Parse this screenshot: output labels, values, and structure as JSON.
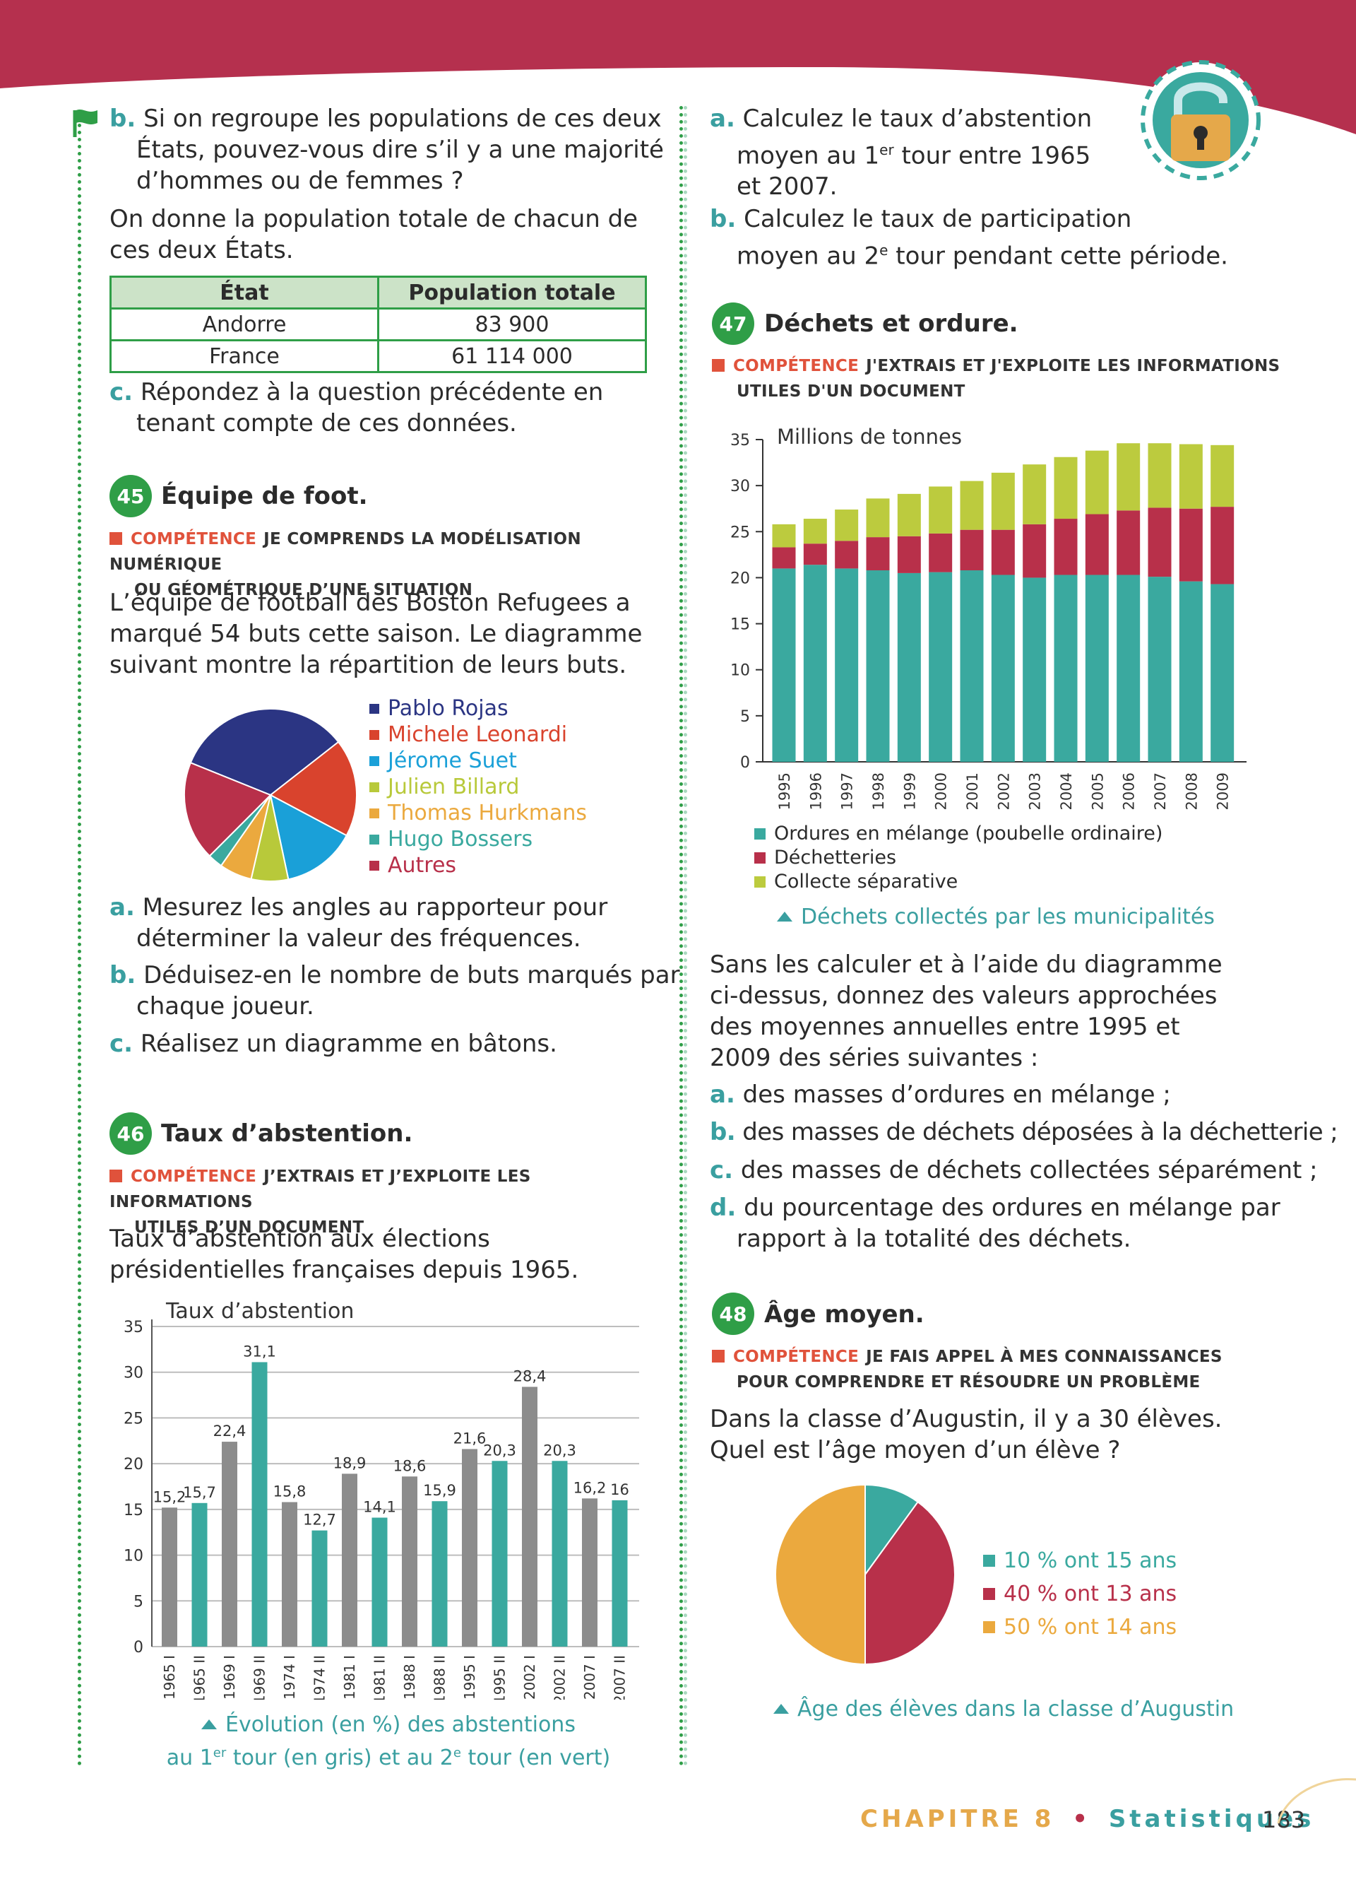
{
  "left": {
    "b_label": "b.",
    "b_text": "Si on regroupe les populations de ces deux États, pouvez-vous dire s’il y a une majorité d’hommes ou de femmes ?",
    "intro": "On donne la population totale de chacun de ces deux États.",
    "table": {
      "headers": [
        "État",
        "Population totale"
      ],
      "rows": [
        [
          "Andorre",
          "83 900"
        ],
        [
          "France",
          "61 114 000"
        ]
      ]
    },
    "c_label": "c.",
    "c_text": "Répondez à la question précédente en tenant compte de ces données."
  },
  "ex45": {
    "number": "45",
    "title": "Équipe de foot.",
    "comp_kw": "COMPÉTENCE",
    "comp_text_1": "JE COMPRENDS LA MODÉLISATION NUMÉRIQUE",
    "comp_text_2": "OU GÉOMÉTRIQUE D’UNE SITUATION",
    "text": "L’équipe de football des Boston Refugees a marqué 54 buts cette saison. Le diagramme suivant montre la répartition de leurs buts.",
    "a_label": "a.",
    "a_text": "Mesurez les angles au rapporteur pour déterminer la valeur des fréquences.",
    "b_label": "b.",
    "b_text": "Déduisez-en le nombre de buts marqués par chaque joueur.",
    "c_label": "c.",
    "c_text": "Réalisez un diagramme en bâtons."
  },
  "ex46": {
    "number": "46",
    "title": "Taux d’abstention.",
    "comp_kw": "COMPÉTENCE",
    "comp_text_1": "J’EXTRAIS ET J’EXPLOITE LES INFORMATIONS",
    "comp_text_2": "UTILES D’UN DOCUMENT",
    "text": "Taux d’abstention aux élections présidentielles françaises depuis 1965.",
    "caption_1": "Évolution (en %) des abstentions",
    "caption_2a": "au 1",
    "caption_2b": "er",
    "caption_2c": " tour (en gris) et au 2",
    "caption_2d": "e",
    "caption_2e": " tour (en vert)"
  },
  "right": {
    "a_label": "a.",
    "a_text_1": "Calculez le taux d’abstention",
    "a_text_2a": "moyen au 1",
    "a_text_2b": "er",
    "a_text_2c": " tour entre 1965",
    "a_text_3": "et 2007.",
    "b_label": "b.",
    "b_text_1": "Calculez le taux de participation",
    "b_text_2a": "moyen au 2",
    "b_text_2b": "e",
    "b_text_2c": " tour pendant cette période."
  },
  "ex47": {
    "number": "47",
    "title": "Déchets et ordure.",
    "comp_kw": "COMPÉTENCE",
    "comp_text_1": "J'EXTRAIS ET J'EXPLOITE LES INFORMATIONS",
    "comp_text_2": "UTILES D'UN DOCUMENT",
    "caption": "Déchets collectés par les municipalités",
    "text": "Sans les calculer et à l’aide du diagramme ci-dessus, donnez des valeurs approchées des moyennes annuelles entre 1995 et 2009 des séries suivantes :",
    "a_label": "a.",
    "a_text": "des masses d’ordures en mélange ;",
    "b_label": "b.",
    "b_text": "des masses de déchets déposées à la déchetterie ;",
    "c_label": "c.",
    "c_text": "des masses de déchets collectées séparément ;",
    "d_label": "d.",
    "d_text": "du pourcentage des ordures en mélange par rapport à la totalité des déchets."
  },
  "ex48": {
    "number": "48",
    "title": "Âge moyen.",
    "comp_kw": "COMPÉTENCE",
    "comp_text_1": "JE FAIS APPEL À MES CONNAISSANCES",
    "comp_text_2": "POUR COMPRENDRE ET RÉSOUDRE UN PROBLÈME",
    "text_1": "Dans la classe d’Augustin, il y a 30 élèves.",
    "text_2": "Quel est l’âge moyen d’un élève ?",
    "caption": "Âge des élèves dans la classe d’Augustin"
  },
  "footer": {
    "chapter": "CHAPITRE 8",
    "bullet": "•",
    "section": "Statistiques",
    "page": "183"
  },
  "colors": {
    "header_band": "#b5304e",
    "green_accent": "#2f9e47",
    "teal": "#3aa99f",
    "crimson": "#b8304a",
    "lime": "#bccb3e",
    "gray_bar": "#8c8c8c",
    "competence_red": "#e0523b",
    "footer_orange": "#e5a84a",
    "footer_teal": "#3a9fa0"
  },
  "icons": [
    "flag-icon",
    "padlock-icon",
    "triangle-caption-icon"
  ],
  "chart_data": [
    {
      "id": "pie_foot",
      "type": "pie",
      "labels": [
        "Pablo Rojas",
        "Michele Leonardi",
        "Jérome Suet",
        "Julien Billard",
        "Thomas Hurkmans",
        "Hugo Bossers",
        "Autres"
      ],
      "values": [
        120,
        66,
        50,
        25,
        22,
        10,
        67
      ],
      "value_unit": "degrees (estimated)",
      "colors": [
        "#2b3583",
        "#d9432d",
        "#1aa0d8",
        "#b8c93a",
        "#eba93e",
        "#3aa99f",
        "#b8304a"
      ],
      "label_colors": [
        "#2b3583",
        "#d9432d",
        "#1aa0d8",
        "#b8c93a",
        "#eba93e",
        "#3aa99f",
        "#b8304a"
      ]
    },
    {
      "id": "bar_abstention",
      "type": "bar",
      "title": "Taux d’abstention",
      "categories": [
        "1965 I",
        "1965 II",
        "1969 I",
        "1969 II",
        "1974 I",
        "1974 II",
        "1981 I",
        "1981 II",
        "1988 I",
        "1988 II",
        "1995 I",
        "1995 II",
        "2002 I",
        "2002 II",
        "2007 I",
        "2007 II"
      ],
      "values": [
        15.2,
        15.7,
        22.4,
        31.1,
        15.8,
        12.7,
        18.9,
        14.1,
        18.6,
        15.9,
        21.6,
        20.3,
        28.4,
        20.3,
        16.2,
        16
      ],
      "labels": [
        "15,2",
        "15,7",
        "22,4",
        "31,1",
        "15,8",
        "12,7",
        "18,9",
        "14,1",
        "18,6",
        "15,9",
        "21,6",
        "20,3",
        "28,4",
        "20,3",
        "16,2",
        "16"
      ],
      "ylim": [
        0,
        35
      ],
      "yticks": [
        0,
        5,
        10,
        15,
        20,
        25,
        30,
        35
      ],
      "grid": true,
      "colors": {
        "I": "#8c8c8c",
        "II": "#3aa99f"
      }
    },
    {
      "id": "stacked_dechets",
      "type": "bar",
      "stacked": true,
      "ylabel": "Millions de tonnes",
      "categories": [
        "1995",
        "1996",
        "1997",
        "1998",
        "1999",
        "2000",
        "2001",
        "2002",
        "2003",
        "2004",
        "2005",
        "2006",
        "2007",
        "2008",
        "2009"
      ],
      "series": [
        {
          "name": "Ordures en mélange (poubelle ordinaire)",
          "color": "#3aa99f",
          "values": [
            21.0,
            21.4,
            21.0,
            20.8,
            20.5,
            20.6,
            20.8,
            20.3,
            20.0,
            20.3,
            20.3,
            20.3,
            20.1,
            19.6,
            19.3
          ]
        },
        {
          "name": "Déchetteries",
          "color": "#b8304a",
          "values": [
            2.3,
            2.3,
            3.0,
            3.6,
            4.0,
            4.2,
            4.4,
            4.9,
            5.8,
            6.1,
            6.6,
            7.0,
            7.5,
            7.9,
            8.4
          ]
        },
        {
          "name": "Collecte séparative",
          "color": "#bccb3e",
          "values": [
            2.5,
            2.7,
            3.4,
            4.2,
            4.6,
            5.1,
            5.3,
            6.2,
            6.5,
            6.7,
            6.9,
            7.3,
            7.0,
            7.0,
            6.7
          ]
        }
      ],
      "ylim": [
        0,
        35
      ],
      "yticks": [
        0,
        5,
        10,
        15,
        20,
        25,
        30,
        35
      ]
    },
    {
      "id": "pie_age",
      "type": "pie",
      "labels": [
        "10 % ont 15 ans",
        "40 % ont 13 ans",
        "50 % ont 14 ans"
      ],
      "values": [
        10,
        40,
        50
      ],
      "colors": [
        "#3aa99f",
        "#b8304a",
        "#eba93e"
      ]
    }
  ]
}
